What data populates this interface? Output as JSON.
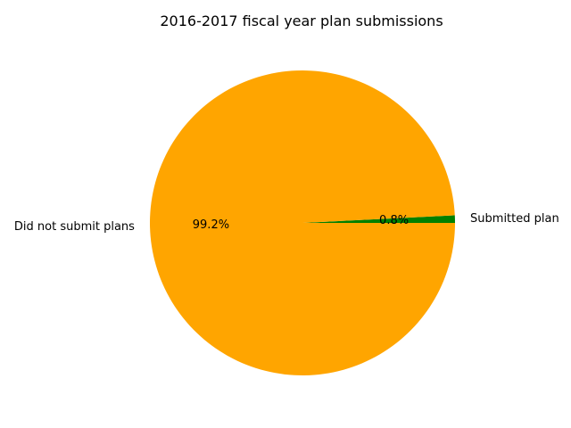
{
  "chart_data": {
    "type": "pie",
    "title": "2016-2017 fiscal year plan submissions",
    "slices": [
      {
        "label": "Submitted plan",
        "value": 0.8,
        "pct_label": "0.8%",
        "color": "#008000"
      },
      {
        "label": "Did not submit plans",
        "value": 99.2,
        "pct_label": "99.2%",
        "color": "#FFA500"
      }
    ]
  }
}
